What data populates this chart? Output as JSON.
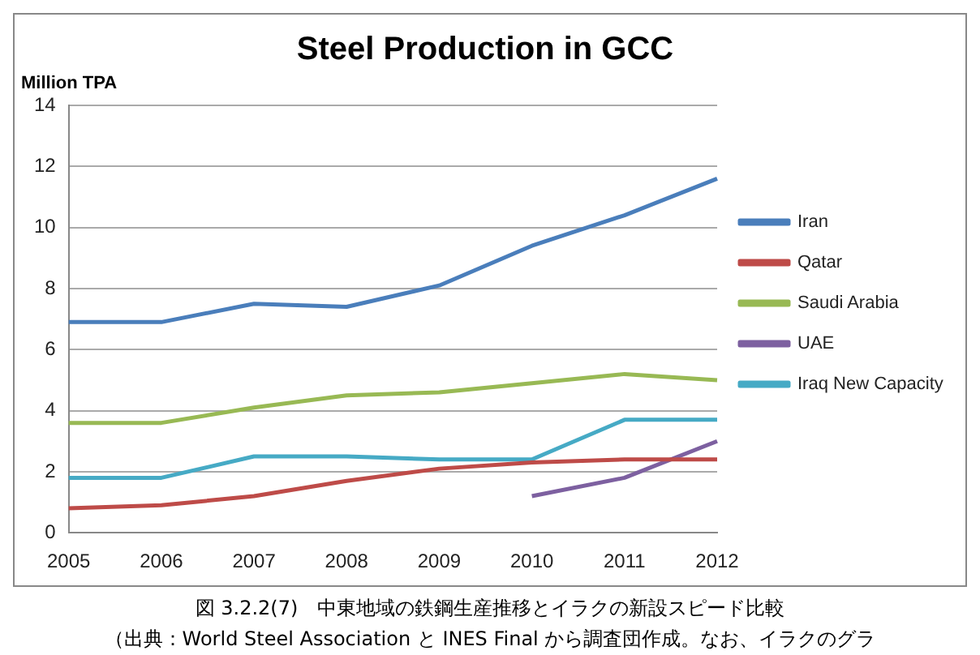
{
  "chart_data": {
    "type": "line",
    "title": "Steel Production in GCC",
    "ylabel": "Million TPA",
    "categories": [
      "2005",
      "2006",
      "2007",
      "2008",
      "2009",
      "2010",
      "2011",
      "2012"
    ],
    "series": [
      {
        "name": "Iran",
        "color": "#4a7ebb",
        "values": [
          6.9,
          6.9,
          7.5,
          7.4,
          8.1,
          9.4,
          10.4,
          11.6
        ]
      },
      {
        "name": "Qatar",
        "color": "#be4b48",
        "values": [
          0.8,
          0.9,
          1.2,
          1.7,
          2.1,
          2.3,
          2.4,
          2.4
        ]
      },
      {
        "name": "Saudi Arabia",
        "color": "#98b954",
        "values": [
          3.6,
          3.6,
          4.1,
          4.5,
          4.6,
          4.9,
          5.2,
          5.0
        ]
      },
      {
        "name": "UAE",
        "color": "#7d60a0",
        "values": [
          null,
          null,
          null,
          null,
          null,
          1.2,
          1.8,
          3.0
        ]
      },
      {
        "name": "Iraq New Capacity",
        "color": "#46aac5",
        "values": [
          1.8,
          1.8,
          2.5,
          2.5,
          2.4,
          2.4,
          3.7,
          3.7
        ]
      }
    ],
    "ylim": [
      0,
      14
    ],
    "yticks": [
      0,
      2,
      4,
      6,
      8,
      10,
      12,
      14
    ],
    "grid": "y",
    "legend": "right",
    "marker": "none",
    "annotations": [
      "図 3.2.2(7)　中東地域の鉄鋼生産推移とイラクの新設スピード比較",
      "（出典：World Steel Association と INES Final から調査団作成。なお、イラクのグラ"
    ]
  }
}
